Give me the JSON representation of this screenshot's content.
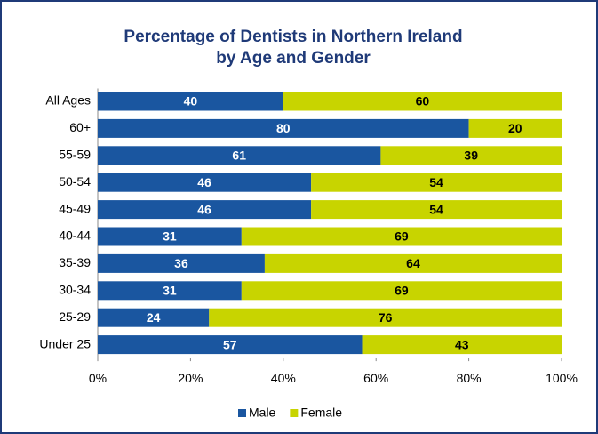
{
  "chart_data": {
    "type": "bar",
    "orientation": "horizontal",
    "stacked": true,
    "title": [
      "Percentage of Dentists in Northern Ireland",
      "by Age and Gender"
    ],
    "categories": [
      "All Ages",
      "60+",
      "55-59",
      "50-54",
      "45-49",
      "40-44",
      "35-39",
      "30-34",
      "25-29",
      "Under 25"
    ],
    "series": [
      {
        "name": "Male",
        "color": "#1a56a0",
        "values": [
          40,
          80,
          61,
          46,
          46,
          31,
          36,
          31,
          24,
          57
        ]
      },
      {
        "name": "Female",
        "color": "#c8d400",
        "values": [
          60,
          20,
          39,
          54,
          54,
          69,
          64,
          69,
          76,
          43
        ]
      }
    ],
    "xlim": [
      0,
      100
    ],
    "xticks": [
      {
        "value": 0,
        "label": "0%"
      },
      {
        "value": 20,
        "label": "20%"
      },
      {
        "value": 40,
        "label": "40%"
      },
      {
        "value": 60,
        "label": "60%"
      },
      {
        "value": 80,
        "label": "80%"
      },
      {
        "value": 100,
        "label": "100%"
      }
    ],
    "legend": "bottom",
    "grid": false
  }
}
